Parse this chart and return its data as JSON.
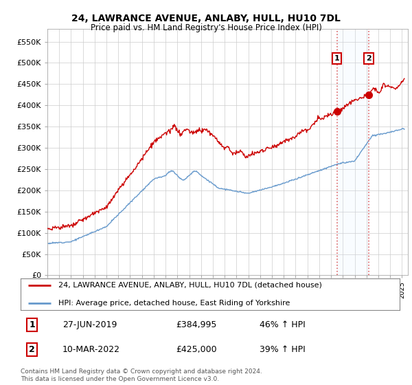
{
  "title": "24, LAWRANCE AVENUE, ANLABY, HULL, HU10 7DL",
  "subtitle": "Price paid vs. HM Land Registry's House Price Index (HPI)",
  "ylabel_ticks": [
    "£0",
    "£50K",
    "£100K",
    "£150K",
    "£200K",
    "£250K",
    "£300K",
    "£350K",
    "£400K",
    "£450K",
    "£500K",
    "£550K"
  ],
  "ytick_values": [
    0,
    50000,
    100000,
    150000,
    200000,
    250000,
    300000,
    350000,
    400000,
    450000,
    500000,
    550000
  ],
  "ylim": [
    0,
    580000
  ],
  "xlim_start": 1995.0,
  "xlim_end": 2025.5,
  "legend_line1": "24, LAWRANCE AVENUE, ANLABY, HULL, HU10 7DL (detached house)",
  "legend_line2": "HPI: Average price, detached house, East Riding of Yorkshire",
  "sale1_date": "27-JUN-2019",
  "sale1_price": "£384,995",
  "sale1_hpi": "46% ↑ HPI",
  "sale2_date": "10-MAR-2022",
  "sale2_price": "£425,000",
  "sale2_hpi": "39% ↑ HPI",
  "footer": "Contains HM Land Registry data © Crown copyright and database right 2024.\nThis data is licensed under the Open Government Licence v3.0.",
  "line1_color": "#cc0000",
  "line2_color": "#6699cc",
  "sale1_x": 2019.49,
  "sale2_x": 2022.19,
  "sale1_y": 384995,
  "sale2_y": 425000,
  "grid_color": "#cccccc",
  "background_color": "#ffffff",
  "plot_bg_color": "#ffffff",
  "vline_color": "#dd6666",
  "shade_color": "#ddeeff"
}
